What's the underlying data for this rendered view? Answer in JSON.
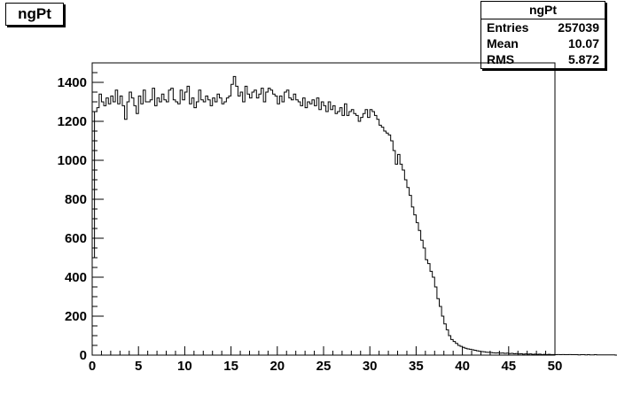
{
  "title": "ngPt",
  "stats": {
    "name": "ngPt",
    "rows": [
      {
        "label": "Entries",
        "value": "257039"
      },
      {
        "label": "Mean",
        "value": "10.07"
      },
      {
        "label": "RMS",
        "value": "5.872"
      }
    ]
  },
  "chart_data": {
    "type": "bar",
    "title": "ngPt",
    "xlabel": "",
    "ylabel": "",
    "xlim": [
      0,
      50
    ],
    "ylim": [
      0,
      1500
    ],
    "xticks": [
      0,
      5,
      10,
      15,
      20,
      25,
      30,
      35,
      40,
      45,
      50
    ],
    "yticks": [
      0,
      200,
      400,
      600,
      800,
      1000,
      1200,
      1400
    ],
    "grid": false,
    "legend": "none",
    "bin_width": 0.25,
    "x_start": 0,
    "values": [
      500,
      1250,
      1270,
      1340,
      1300,
      1280,
      1320,
      1290,
      1330,
      1300,
      1360,
      1290,
      1330,
      1280,
      1210,
      1300,
      1350,
      1320,
      1280,
      1240,
      1330,
      1290,
      1360,
      1300,
      1300,
      1310,
      1370,
      1280,
      1320,
      1300,
      1340,
      1310,
      1300,
      1360,
      1370,
      1310,
      1300,
      1290,
      1360,
      1310,
      1350,
      1380,
      1290,
      1320,
      1270,
      1300,
      1360,
      1310,
      1300,
      1330,
      1310,
      1280,
      1320,
      1300,
      1340,
      1320,
      1290,
      1300,
      1320,
      1330,
      1390,
      1430,
      1380,
      1330,
      1350,
      1300,
      1380,
      1340,
      1320,
      1350,
      1360,
      1320,
      1340,
      1370,
      1300,
      1350,
      1370,
      1360,
      1340,
      1330,
      1290,
      1330,
      1300,
      1350,
      1360,
      1320,
      1310,
      1340,
      1310,
      1300,
      1280,
      1320,
      1270,
      1300,
      1290,
      1310,
      1280,
      1320,
      1260,
      1300,
      1280,
      1250,
      1300,
      1260,
      1280,
      1240,
      1250,
      1270,
      1230,
      1290,
      1230,
      1250,
      1260,
      1240,
      1230,
      1200,
      1220,
      1240,
      1260,
      1220,
      1260,
      1250,
      1230,
      1210,
      1180,
      1170,
      1150,
      1140,
      1130,
      1100,
      1050,
      980,
      1030,
      980,
      950,
      900,
      860,
      820,
      760,
      720,
      680,
      640,
      590,
      550,
      490,
      470,
      430,
      400,
      350,
      290,
      250,
      200,
      160,
      130,
      100,
      80,
      70,
      60,
      50,
      45,
      40,
      35,
      32,
      30,
      27,
      25,
      22,
      20,
      18,
      17,
      15,
      14,
      13,
      12,
      11,
      12,
      10,
      11,
      9,
      10,
      8,
      9,
      7,
      8,
      6,
      7,
      5,
      6,
      5,
      6,
      4,
      5,
      4,
      5,
      3,
      4,
      3,
      4,
      3,
      3,
      2,
      3,
      2,
      3,
      2,
      2,
      3,
      2,
      2,
      2,
      1,
      2,
      2,
      1,
      2,
      1,
      1,
      2,
      1,
      1,
      1,
      1,
      1,
      1,
      1,
      1,
      0,
      1,
      0,
      1,
      0,
      0,
      1,
      0,
      0,
      0
    ]
  }
}
